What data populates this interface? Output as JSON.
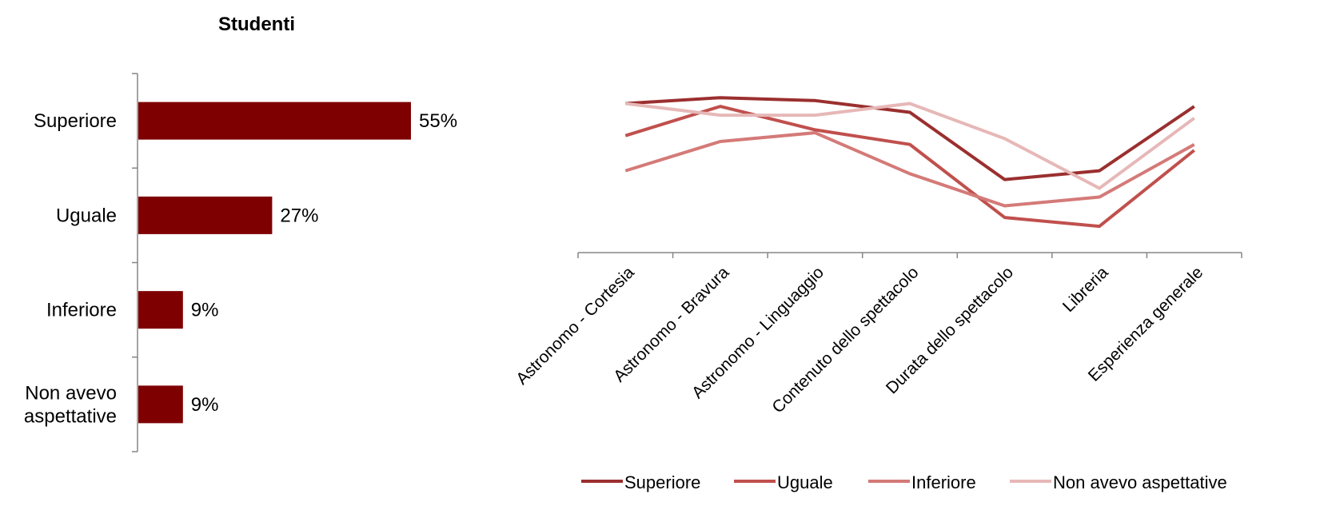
{
  "chart_data": [
    {
      "type": "bar",
      "orientation": "horizontal",
      "title": "Studenti",
      "categories": [
        "Superiore",
        "Uguale",
        "Inferiore",
        "Non avevo aspettative"
      ],
      "values": [
        55,
        27,
        9,
        9
      ],
      "data_labels": [
        "55%",
        "27%",
        "9%",
        "9%"
      ],
      "xlim": [
        0,
        100
      ],
      "color": "#7f0000",
      "grid": false
    },
    {
      "type": "line",
      "x": [
        "Astronomo - Cortesia",
        "Astronomo - Bravura",
        "Astronomo - Linguaggio",
        "Contenuto dello spettacolo",
        "Durata dello spettacolo",
        "Libreria",
        "Esperienza generale"
      ],
      "series": [
        {
          "name": "Superiore",
          "color": "#9b2f2f",
          "values": [
            0.81,
            0.83,
            0.82,
            0.78,
            0.55,
            0.58,
            0.8
          ]
        },
        {
          "name": "Uguale",
          "color": "#c0504d",
          "values": [
            0.7,
            0.8,
            0.72,
            0.67,
            0.42,
            0.39,
            0.65
          ]
        },
        {
          "name": "Inferiore",
          "color": "#d47a78",
          "values": [
            0.58,
            0.68,
            0.71,
            0.57,
            0.46,
            0.49,
            0.67
          ]
        },
        {
          "name": "Non avevo aspettative",
          "color": "#e6b8b7",
          "values": [
            0.81,
            0.77,
            0.77,
            0.81,
            0.69,
            0.52,
            0.76
          ]
        }
      ],
      "ylim": [
        0.3,
        1.0
      ],
      "grid": false,
      "legend_position": "bottom"
    }
  ]
}
